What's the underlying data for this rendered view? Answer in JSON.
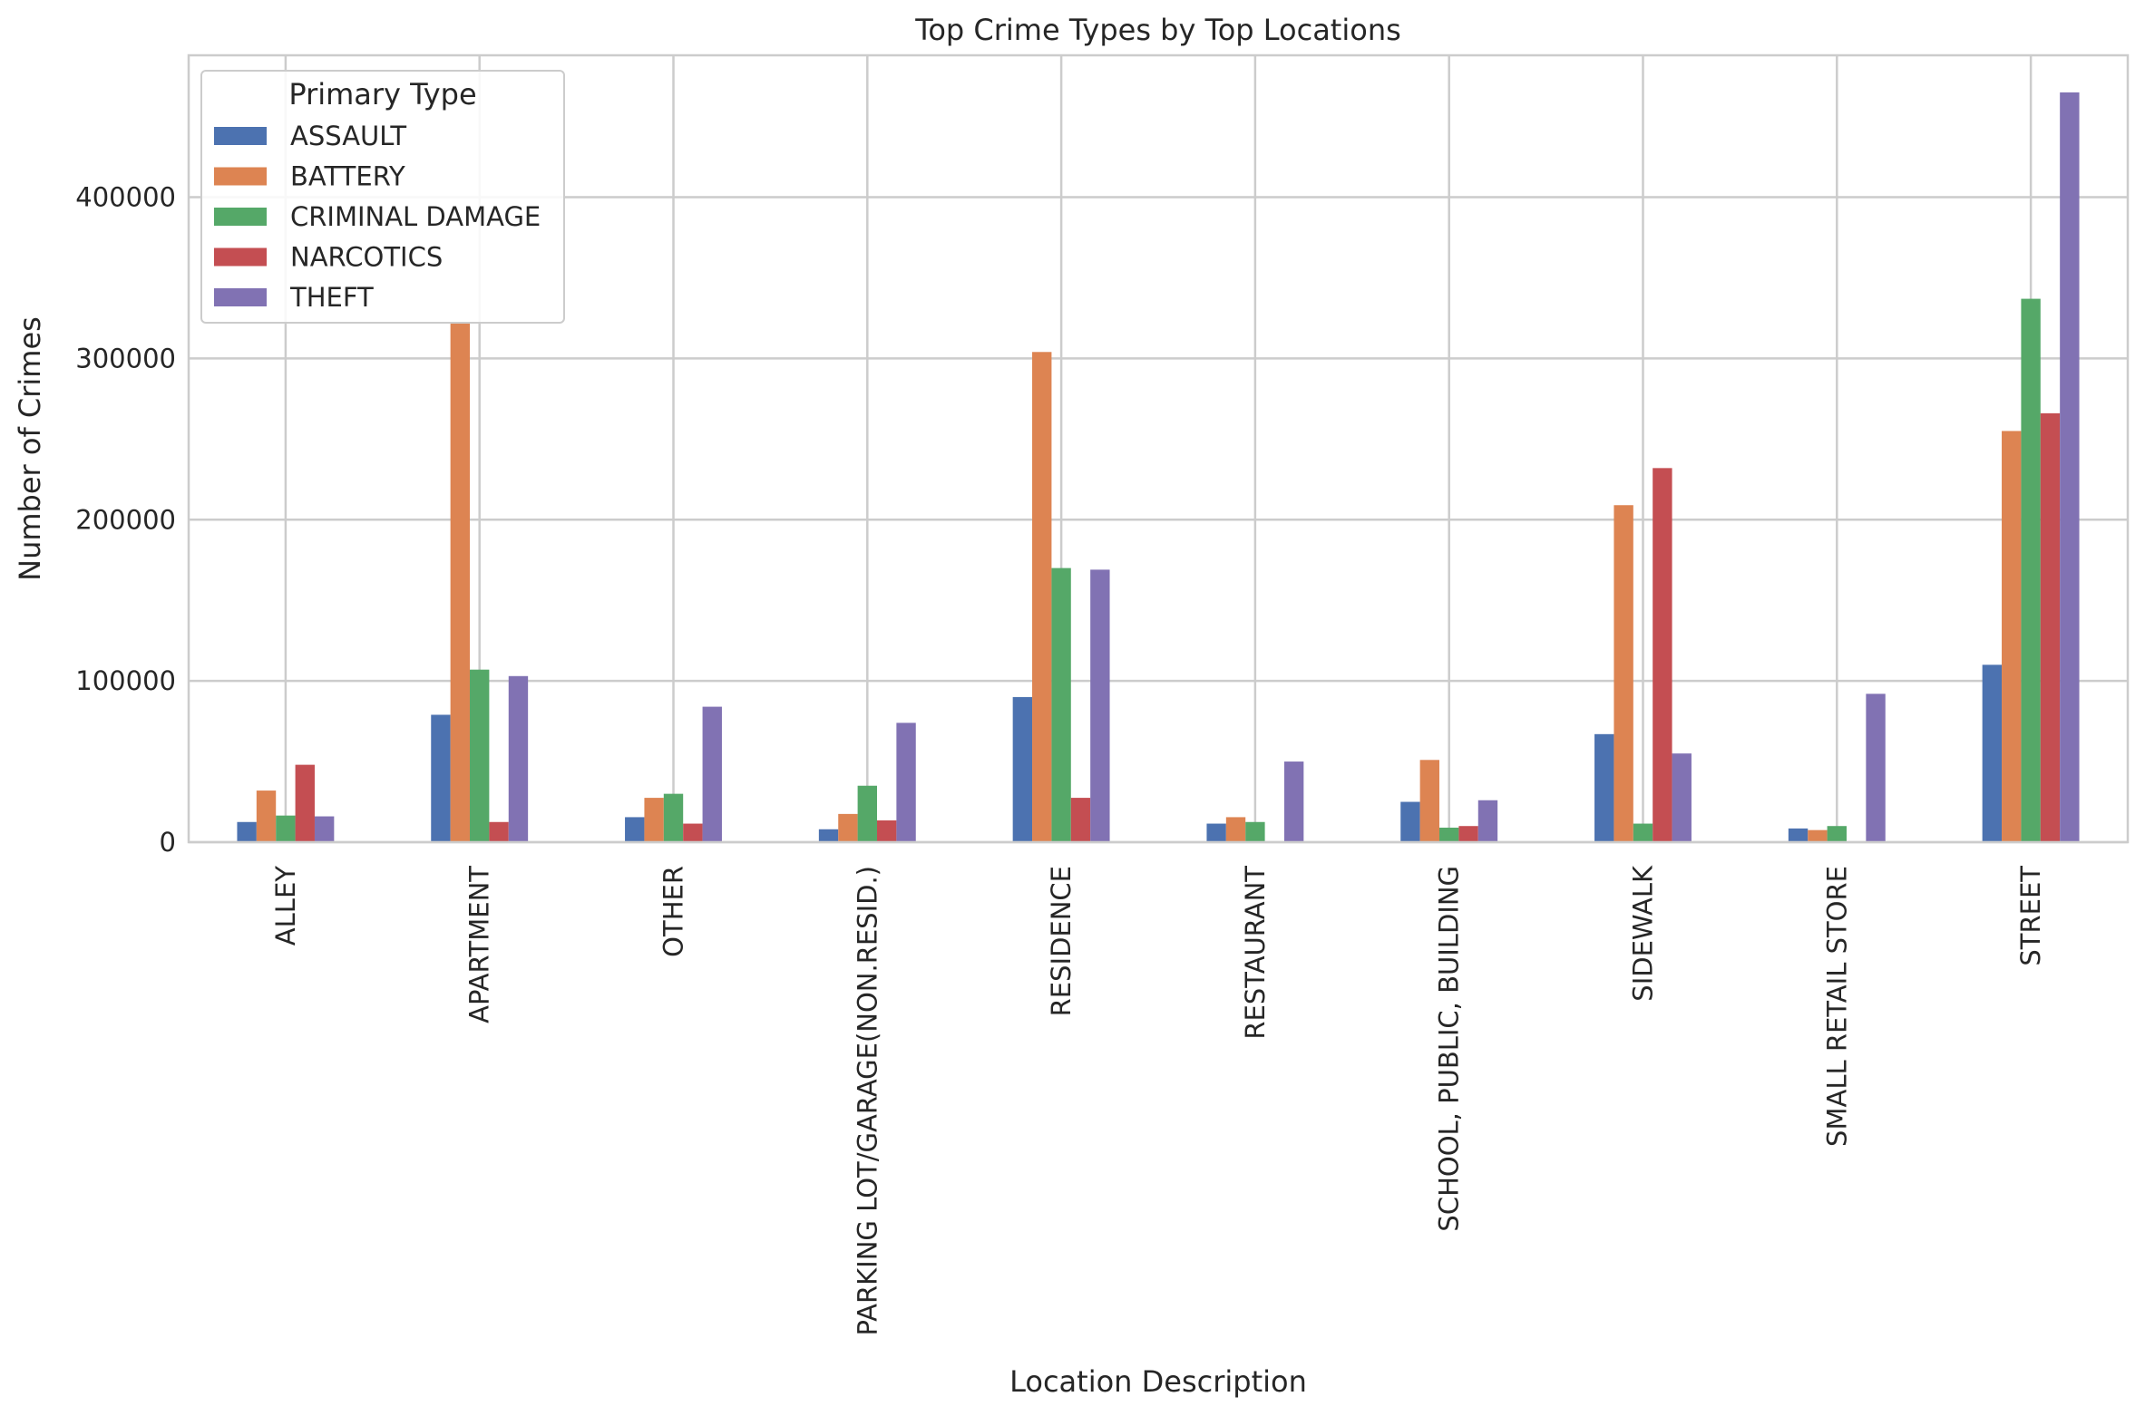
{
  "chart_data": {
    "type": "bar",
    "title": "Top Crime Types by Top Locations",
    "xlabel": "Location Description",
    "ylabel": "Number of Crimes",
    "categories": [
      "ALLEY",
      "APARTMENT",
      "OTHER",
      "PARKING LOT/GARAGE(NON.RESID.)",
      "RESIDENCE",
      "RESTAURANT",
      "SCHOOL, PUBLIC, BUILDING",
      "SIDEWALK",
      "SMALL RETAIL STORE",
      "STREET"
    ],
    "series": [
      {
        "name": "ASSAULT",
        "color": "#4c72b0",
        "values": [
          12500,
          79000,
          15500,
          8000,
          90000,
          11500,
          25000,
          67000,
          8500,
          110000
        ]
      },
      {
        "name": "BATTERY",
        "color": "#dd8452",
        "values": [
          32000,
          322000,
          27500,
          17500,
          304000,
          15500,
          51000,
          209000,
          7500,
          255000
        ]
      },
      {
        "name": "CRIMINAL DAMAGE",
        "color": "#55a868",
        "values": [
          16500,
          107000,
          30000,
          35000,
          170000,
          12500,
          9000,
          11500,
          10000,
          337000
        ]
      },
      {
        "name": "NARCOTICS",
        "color": "#c44e52",
        "values": [
          48000,
          12500,
          11500,
          13500,
          27500,
          0,
          10000,
          232000,
          0,
          266000
        ]
      },
      {
        "name": "THEFT",
        "color": "#8172b3",
        "values": [
          16000,
          103000,
          84000,
          74000,
          169000,
          50000,
          26000,
          55000,
          92000,
          465000
        ]
      }
    ],
    "ylim": [
      0,
      488000
    ],
    "yticks": [
      0,
      100000,
      200000,
      300000,
      400000
    ],
    "ytick_labels": [
      "0",
      "100000",
      "200000",
      "300000",
      "400000"
    ],
    "grid": true,
    "legend": {
      "title": "Primary Type",
      "placement": "top-left"
    }
  }
}
